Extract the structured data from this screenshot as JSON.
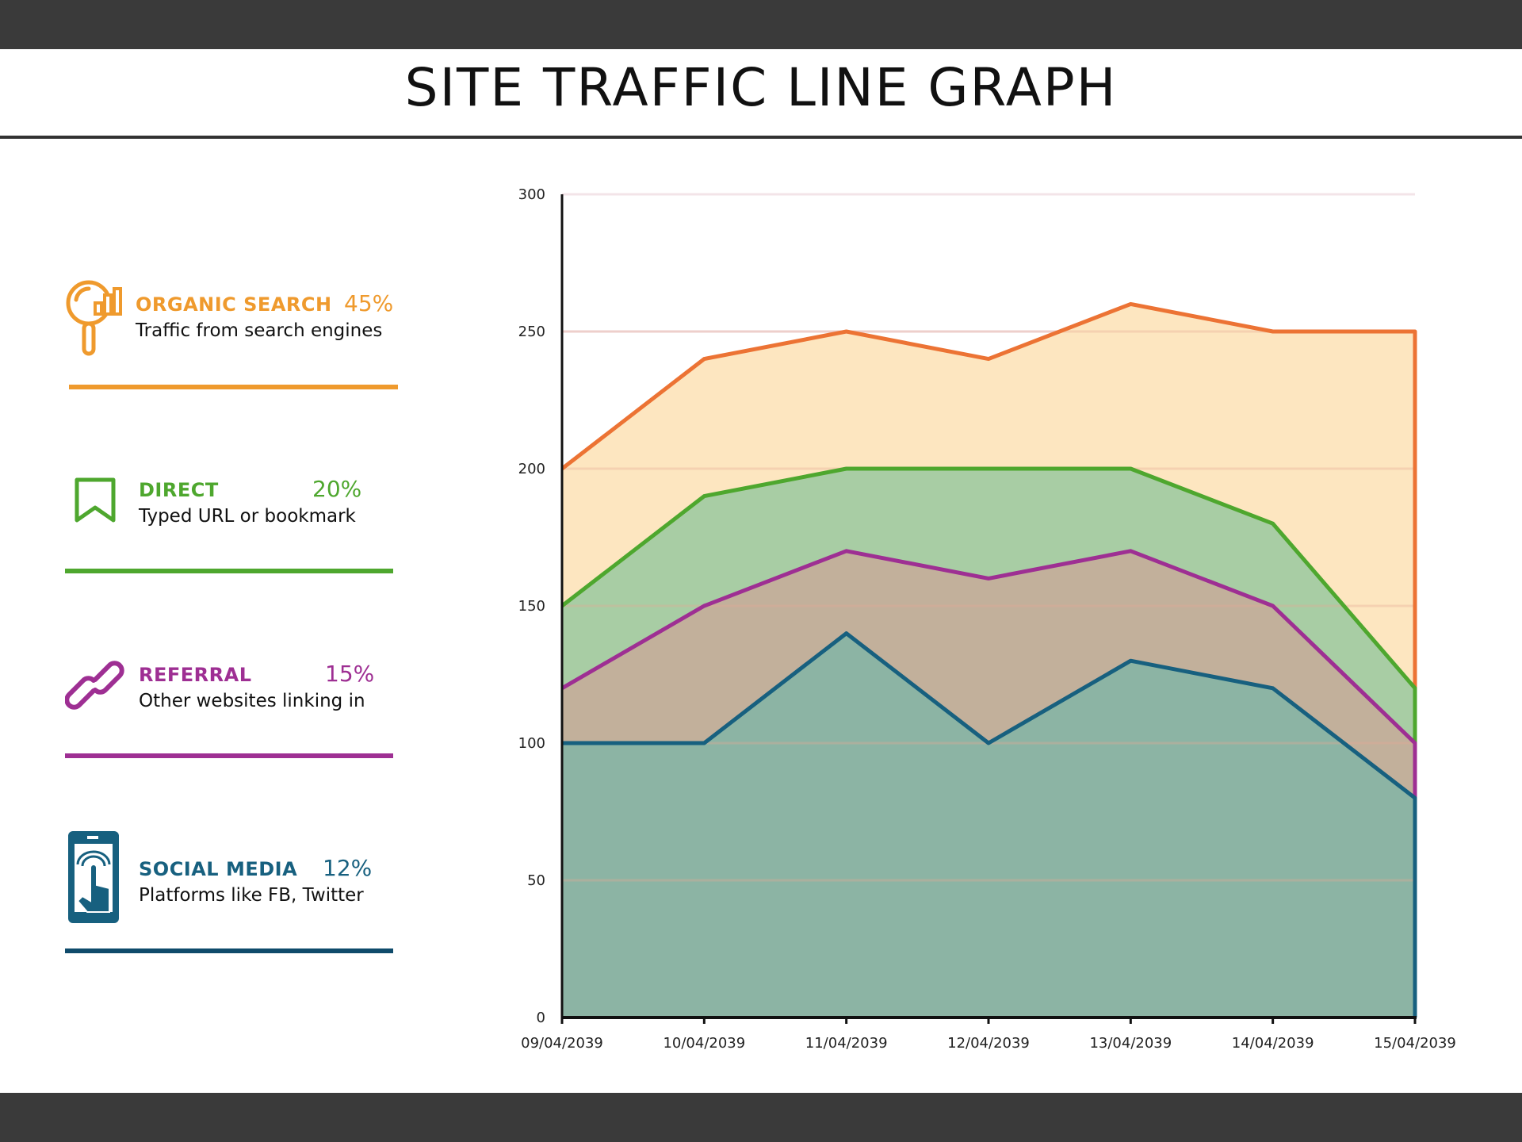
{
  "title": "SITE TRAFFIC LINE GRAPH",
  "legend": [
    {
      "name": "ORGANIC SEARCH",
      "percent": "45%",
      "description": "Traffic from search engines",
      "icon": "magnifier-bar-chart-icon",
      "color": "#ef9a2d"
    },
    {
      "name": "DIRECT",
      "percent": "20%",
      "description": "Typed URL or bookmark",
      "icon": "bookmark-icon",
      "color": "#4ea72e"
    },
    {
      "name": "REFERRAL",
      "percent": "15%",
      "description": "Other websites linking in",
      "icon": "link-icon",
      "color": "#9e2f93"
    },
    {
      "name": "SOCIAL MEDIA",
      "percent": "12%",
      "description": "Platforms like FB, Twitter",
      "icon": "smartphone-tap-icon",
      "color": "#17607f"
    }
  ],
  "chart_data": {
    "type": "area",
    "title": "SITE TRAFFIC LINE GRAPH",
    "xlabel": "",
    "ylabel": "",
    "x": [
      "09/04/2039",
      "10/04/2039",
      "11/04/2039",
      "12/04/2039",
      "13/04/2039",
      "14/04/2039",
      "15/04/2039"
    ],
    "ylim": [
      0,
      300
    ],
    "yticks": [
      0,
      50,
      100,
      150,
      200,
      250,
      300
    ],
    "grid": true,
    "stacked": false,
    "series": [
      {
        "name": "ORGANIC SEARCH",
        "values": [
          200,
          240,
          250,
          240,
          260,
          250,
          250
        ],
        "line_color": "#ec7334",
        "fill_color": "#fde6c0"
      },
      {
        "name": "DIRECT",
        "values": [
          150,
          190,
          200,
          200,
          200,
          180,
          120
        ],
        "line_color": "#4ea72e",
        "fill_color": "#a8cda4"
      },
      {
        "name": "REFERRAL",
        "values": [
          120,
          150,
          170,
          160,
          170,
          150,
          100
        ],
        "line_color": "#9e2f93",
        "fill_color": "#c2b09b"
      },
      {
        "name": "SOCIAL MEDIA",
        "values": [
          100,
          100,
          140,
          100,
          130,
          120,
          80
        ],
        "line_color": "#17607f",
        "fill_color": "#8cb4a4"
      }
    ]
  }
}
